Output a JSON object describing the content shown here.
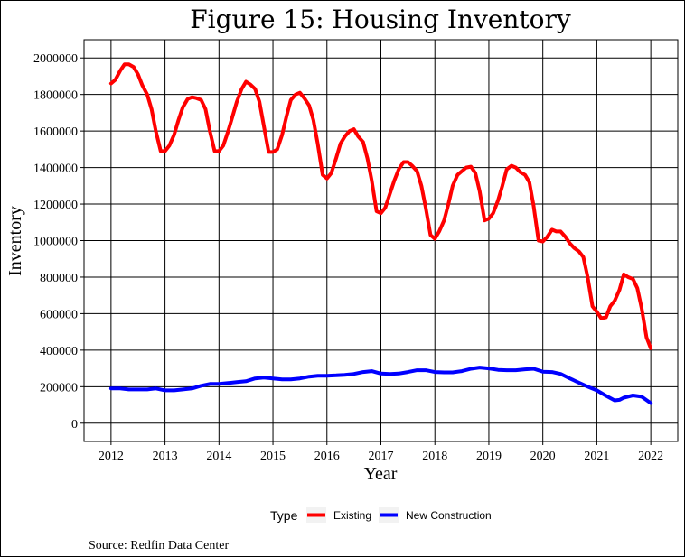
{
  "chart_data": {
    "type": "line",
    "title": "Figure 15: Housing Inventory",
    "xlabel": "Year",
    "ylabel": "Inventory",
    "xlim": [
      2011.5,
      2022.5
    ],
    "ylim": [
      -100000,
      2100000
    ],
    "x_ticks": [
      2012,
      2013,
      2014,
      2015,
      2016,
      2017,
      2018,
      2019,
      2020,
      2021,
      2022
    ],
    "x_tick_labels": [
      "2012",
      "2013",
      "2014",
      "2015",
      "2016",
      "2017",
      "2018",
      "2019",
      "2020",
      "2021",
      "2022"
    ],
    "y_ticks": [
      0,
      200000,
      400000,
      600000,
      800000,
      1000000,
      1200000,
      1400000,
      1600000,
      1800000,
      2000000
    ],
    "y_tick_labels": [
      "0",
      "200000",
      "400000",
      "600000",
      "800000",
      "1000000",
      "1200000",
      "1400000",
      "1600000",
      "1800000",
      "2000000"
    ],
    "grid": true,
    "legend": {
      "title": "Type",
      "position": "bottom"
    },
    "caption": "Source: Redfin Data Center",
    "series": [
      {
        "name": "Existing",
        "color": "#ff0000",
        "points": [
          [
            2012.0,
            1860000
          ],
          [
            2012.08,
            1880000
          ],
          [
            2012.17,
            1930000
          ],
          [
            2012.25,
            1965000
          ],
          [
            2012.33,
            1965000
          ],
          [
            2012.42,
            1950000
          ],
          [
            2012.5,
            1910000
          ],
          [
            2012.58,
            1850000
          ],
          [
            2012.67,
            1800000
          ],
          [
            2012.75,
            1720000
          ],
          [
            2012.83,
            1600000
          ],
          [
            2012.92,
            1490000
          ],
          [
            2013.0,
            1490000
          ],
          [
            2013.08,
            1520000
          ],
          [
            2013.17,
            1580000
          ],
          [
            2013.25,
            1660000
          ],
          [
            2013.33,
            1730000
          ],
          [
            2013.42,
            1775000
          ],
          [
            2013.5,
            1785000
          ],
          [
            2013.58,
            1780000
          ],
          [
            2013.67,
            1770000
          ],
          [
            2013.75,
            1720000
          ],
          [
            2013.83,
            1600000
          ],
          [
            2013.92,
            1490000
          ],
          [
            2014.0,
            1490000
          ],
          [
            2014.08,
            1520000
          ],
          [
            2014.17,
            1600000
          ],
          [
            2014.25,
            1680000
          ],
          [
            2014.33,
            1760000
          ],
          [
            2014.42,
            1830000
          ],
          [
            2014.5,
            1870000
          ],
          [
            2014.58,
            1855000
          ],
          [
            2014.67,
            1830000
          ],
          [
            2014.75,
            1760000
          ],
          [
            2014.83,
            1630000
          ],
          [
            2014.92,
            1485000
          ],
          [
            2015.0,
            1485000
          ],
          [
            2015.08,
            1500000
          ],
          [
            2015.17,
            1580000
          ],
          [
            2015.25,
            1680000
          ],
          [
            2015.33,
            1770000
          ],
          [
            2015.42,
            1800000
          ],
          [
            2015.5,
            1810000
          ],
          [
            2015.58,
            1780000
          ],
          [
            2015.67,
            1740000
          ],
          [
            2015.75,
            1660000
          ],
          [
            2015.83,
            1530000
          ],
          [
            2015.92,
            1360000
          ],
          [
            2016.0,
            1340000
          ],
          [
            2016.08,
            1370000
          ],
          [
            2016.17,
            1450000
          ],
          [
            2016.25,
            1530000
          ],
          [
            2016.33,
            1570000
          ],
          [
            2016.42,
            1600000
          ],
          [
            2016.5,
            1610000
          ],
          [
            2016.58,
            1570000
          ],
          [
            2016.67,
            1540000
          ],
          [
            2016.75,
            1450000
          ],
          [
            2016.83,
            1330000
          ],
          [
            2016.92,
            1160000
          ],
          [
            2017.0,
            1150000
          ],
          [
            2017.08,
            1180000
          ],
          [
            2017.17,
            1260000
          ],
          [
            2017.25,
            1330000
          ],
          [
            2017.33,
            1390000
          ],
          [
            2017.42,
            1430000
          ],
          [
            2017.5,
            1430000
          ],
          [
            2017.58,
            1410000
          ],
          [
            2017.67,
            1380000
          ],
          [
            2017.75,
            1300000
          ],
          [
            2017.83,
            1180000
          ],
          [
            2017.92,
            1030000
          ],
          [
            2018.0,
            1010000
          ],
          [
            2018.08,
            1050000
          ],
          [
            2018.17,
            1110000
          ],
          [
            2018.25,
            1200000
          ],
          [
            2018.33,
            1300000
          ],
          [
            2018.42,
            1360000
          ],
          [
            2018.5,
            1380000
          ],
          [
            2018.58,
            1400000
          ],
          [
            2018.67,
            1405000
          ],
          [
            2018.75,
            1370000
          ],
          [
            2018.83,
            1270000
          ],
          [
            2018.92,
            1110000
          ],
          [
            2019.0,
            1120000
          ],
          [
            2019.08,
            1150000
          ],
          [
            2019.17,
            1220000
          ],
          [
            2019.25,
            1300000
          ],
          [
            2019.33,
            1390000
          ],
          [
            2019.42,
            1410000
          ],
          [
            2019.5,
            1400000
          ],
          [
            2019.58,
            1375000
          ],
          [
            2019.67,
            1360000
          ],
          [
            2019.75,
            1320000
          ],
          [
            2019.83,
            1190000
          ],
          [
            2019.92,
            1000000
          ],
          [
            2020.0,
            995000
          ],
          [
            2020.08,
            1020000
          ],
          [
            2020.17,
            1060000
          ],
          [
            2020.25,
            1050000
          ],
          [
            2020.33,
            1050000
          ],
          [
            2020.42,
            1020000
          ],
          [
            2020.5,
            985000
          ],
          [
            2020.58,
            960000
          ],
          [
            2020.67,
            940000
          ],
          [
            2020.75,
            910000
          ],
          [
            2020.83,
            800000
          ],
          [
            2020.92,
            640000
          ],
          [
            2021.0,
            610000
          ],
          [
            2021.08,
            575000
          ],
          [
            2021.17,
            580000
          ],
          [
            2021.25,
            640000
          ],
          [
            2021.33,
            670000
          ],
          [
            2021.42,
            730000
          ],
          [
            2021.5,
            815000
          ],
          [
            2021.58,
            800000
          ],
          [
            2021.67,
            790000
          ],
          [
            2021.75,
            740000
          ],
          [
            2021.83,
            630000
          ],
          [
            2021.92,
            470000
          ],
          [
            2022.0,
            410000
          ]
        ]
      },
      {
        "name": "New Construction",
        "color": "#0000ff",
        "points": [
          [
            2012.0,
            190000
          ],
          [
            2012.17,
            190000
          ],
          [
            2012.33,
            185000
          ],
          [
            2012.5,
            185000
          ],
          [
            2012.67,
            185000
          ],
          [
            2012.83,
            190000
          ],
          [
            2013.0,
            180000
          ],
          [
            2013.17,
            180000
          ],
          [
            2013.33,
            185000
          ],
          [
            2013.5,
            190000
          ],
          [
            2013.67,
            205000
          ],
          [
            2013.83,
            215000
          ],
          [
            2014.0,
            215000
          ],
          [
            2014.17,
            220000
          ],
          [
            2014.33,
            225000
          ],
          [
            2014.5,
            230000
          ],
          [
            2014.67,
            245000
          ],
          [
            2014.83,
            250000
          ],
          [
            2015.0,
            245000
          ],
          [
            2015.17,
            240000
          ],
          [
            2015.33,
            240000
          ],
          [
            2015.5,
            245000
          ],
          [
            2015.67,
            255000
          ],
          [
            2015.83,
            260000
          ],
          [
            2016.0,
            260000
          ],
          [
            2016.17,
            262000
          ],
          [
            2016.33,
            265000
          ],
          [
            2016.5,
            270000
          ],
          [
            2016.67,
            280000
          ],
          [
            2016.83,
            285000
          ],
          [
            2017.0,
            272000
          ],
          [
            2017.17,
            270000
          ],
          [
            2017.33,
            272000
          ],
          [
            2017.5,
            280000
          ],
          [
            2017.67,
            290000
          ],
          [
            2017.83,
            290000
          ],
          [
            2018.0,
            280000
          ],
          [
            2018.17,
            278000
          ],
          [
            2018.33,
            278000
          ],
          [
            2018.5,
            285000
          ],
          [
            2018.67,
            298000
          ],
          [
            2018.83,
            305000
          ],
          [
            2019.0,
            300000
          ],
          [
            2019.17,
            292000
          ],
          [
            2019.33,
            290000
          ],
          [
            2019.5,
            290000
          ],
          [
            2019.67,
            295000
          ],
          [
            2019.83,
            298000
          ],
          [
            2020.0,
            282000
          ],
          [
            2020.17,
            280000
          ],
          [
            2020.33,
            270000
          ],
          [
            2020.5,
            245000
          ],
          [
            2020.67,
            222000
          ],
          [
            2020.83,
            200000
          ],
          [
            2021.0,
            180000
          ],
          [
            2021.17,
            150000
          ],
          [
            2021.33,
            125000
          ],
          [
            2021.42,
            128000
          ],
          [
            2021.5,
            140000
          ],
          [
            2021.67,
            152000
          ],
          [
            2021.83,
            145000
          ],
          [
            2022.0,
            110000
          ]
        ]
      }
    ]
  }
}
